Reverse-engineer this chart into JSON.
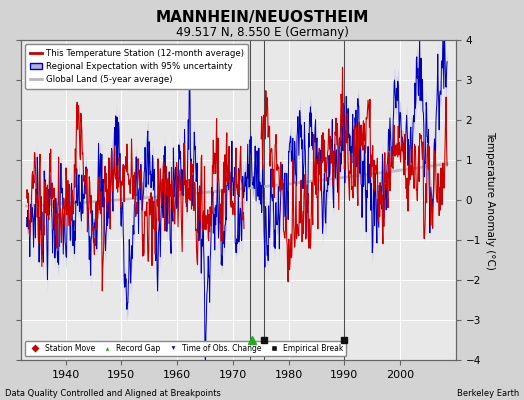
{
  "title": "MANNHEIN/NEUOSTHEIM",
  "subtitle": "49.517 N, 8.550 E (Germany)",
  "ylabel": "Temperature Anomaly (°C)",
  "footer_left": "Data Quality Controlled and Aligned at Breakpoints",
  "footer_right": "Berkeley Earth",
  "xlim": [
    1932,
    2010
  ],
  "ylim": [
    -4,
    4
  ],
  "yticks": [
    -4,
    -3,
    -2,
    -1,
    0,
    1,
    2,
    3,
    4
  ],
  "xticks": [
    1940,
    1950,
    1960,
    1970,
    1980,
    1990,
    2000
  ],
  "bg_color": "#d3d3d3",
  "plot_bg_color": "#e8e8e8",
  "grid_color": "#ffffff",
  "red_line_color": "#cc0000",
  "blue_line_color": "#0000bb",
  "blue_fill_color": "#b0b0dd",
  "gray_line_color": "#b8b8b8",
  "vline_color": "#222222",
  "legend_entries": [
    "This Temperature Station (12-month average)",
    "Regional Expectation with 95% uncertainty",
    "Global Land (5-year average)"
  ],
  "marker_year_green_triangle": 1973.5,
  "marker_year_black_square1": 1975.5,
  "marker_year_black_square2": 1990.0,
  "vline_year1": 1973.0,
  "vline_year2": 1975.5,
  "vline_year3": 1990.0,
  "marker_y": -3.5
}
